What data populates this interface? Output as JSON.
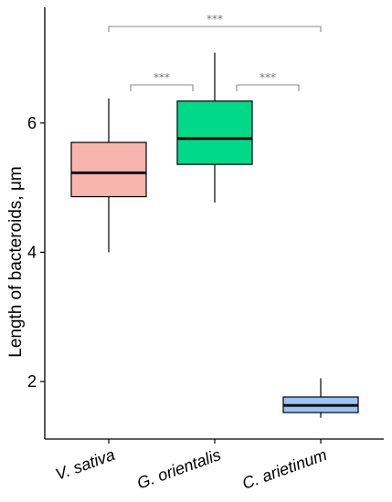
{
  "chart_data": {
    "type": "box",
    "ylabel": "Length of bacteroids, μm",
    "xlabel": "",
    "ylim": [
      1.1,
      7.8
    ],
    "yticks": [
      2,
      4,
      6
    ],
    "grid": false,
    "legend": "none",
    "categories": [
      "V. sativa",
      "G. orientalis",
      "C. arietinum"
    ],
    "boxes": [
      {
        "category": "V. sativa",
        "min": 4.0,
        "q1": 4.86,
        "median": 5.23,
        "q3": 5.7,
        "max": 6.38,
        "color": "#f8b5ad"
      },
      {
        "category": "G. orientalis",
        "min": 4.77,
        "q1": 5.36,
        "median": 5.76,
        "q3": 6.34,
        "max": 7.09,
        "color": "#00d88a"
      },
      {
        "category": "C. arietinum",
        "min": 1.44,
        "q1": 1.52,
        "median": 1.63,
        "q3": 1.76,
        "max": 2.05,
        "color": "#99c5f5"
      }
    ],
    "significance": [
      {
        "from": "V. sativa",
        "to": "G. orientalis",
        "label": "***"
      },
      {
        "from": "G. orientalis",
        "to": "C. arietinum",
        "label": "***"
      },
      {
        "from": "V. sativa",
        "to": "C. arietinum",
        "label": "***"
      }
    ]
  }
}
